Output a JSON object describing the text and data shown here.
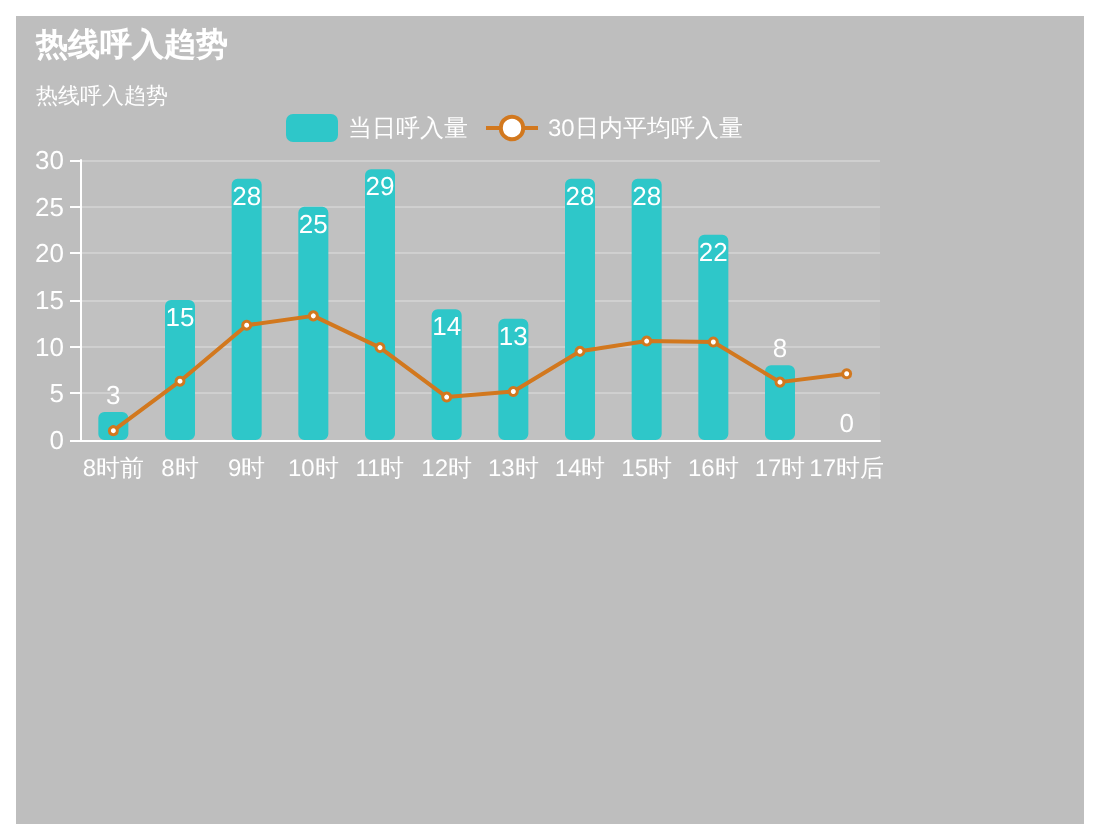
{
  "chart_data": {
    "type": "bar",
    "title": "热线呼入趋势",
    "subtitle": "热线呼入趋势",
    "categories": [
      "8时前",
      "8时",
      "9时",
      "10时",
      "11时",
      "12时",
      "13时",
      "14时",
      "15时",
      "16时",
      "17时",
      "17时后"
    ],
    "series": [
      {
        "name": "当日呼入量",
        "color": "#2ec7c9",
        "values": [
          3,
          15,
          28,
          25,
          29,
          14,
          13,
          28,
          28,
          22,
          8,
          0
        ],
        "value_labels": [
          "3",
          "15",
          "28",
          "25",
          "29",
          "14",
          "13",
          "28",
          "28",
          "22",
          "8",
          "0"
        ]
      },
      {
        "name": "30日内平均呼入量",
        "type": "line",
        "color": "#d2781e",
        "values": [
          1,
          6.3,
          12.3,
          13.3,
          9.9,
          4.6,
          5.2,
          9.5,
          10.6,
          10.5,
          6.2,
          7.1
        ]
      }
    ],
    "ylim": [
      0,
      30
    ],
    "yticks": [
      0,
      5,
      10,
      15,
      20,
      25,
      30
    ],
    "grid": true,
    "legend": "top",
    "marker": "circle"
  }
}
